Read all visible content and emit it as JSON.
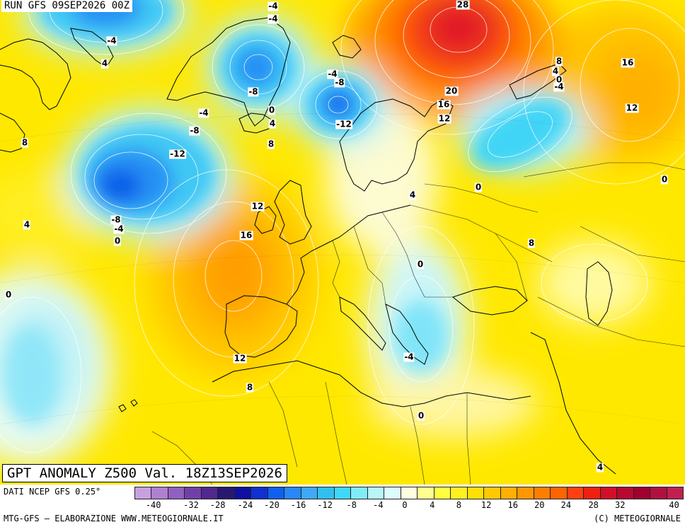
{
  "header": {
    "run": "RUN GFS 09SEP2026 00Z"
  },
  "title": "GPT ANOMALY Z500 Val. 18Z13SEP2026",
  "footer": {
    "data_source": "DATI NCEP GFS 0.25°",
    "credit": "MTG-GFS – ELABORAZIONE WWW.METEOGIORNALE.IT",
    "copyright": "(C) METEOGIORNALE"
  },
  "colorbar": {
    "colors": [
      "#c8a0e0",
      "#b080d0",
      "#9060c0",
      "#7040a8",
      "#502890",
      "#281870",
      "#1010a0",
      "#1030d0",
      "#1060f0",
      "#2888f8",
      "#40a8f8",
      "#30c0f0",
      "#40d8f8",
      "#80ecf8",
      "#b8f6fa",
      "#dcfbfc",
      "#ffffe0",
      "#ffff90",
      "#ffff40",
      "#fff020",
      "#ffe000",
      "#ffc800",
      "#ffb000",
      "#ff9800",
      "#ff7e00",
      "#ff6400",
      "#ff4010",
      "#f02010",
      "#d01028",
      "#b80830",
      "#a00030",
      "#b01040",
      "#c02050"
    ],
    "ticks": [
      "-40",
      "-32",
      "-28",
      "-24",
      "-20",
      "-16",
      "-12",
      "-8",
      "-4",
      "0",
      "4",
      "8",
      "12",
      "16",
      "20",
      "24",
      "28",
      "32",
      "40"
    ]
  },
  "contour_labels": [
    {
      "text": "-4"
    },
    {
      "text": "-4"
    },
    {
      "text": "28"
    },
    {
      "text": "-4"
    },
    {
      "text": "4"
    },
    {
      "text": "8"
    },
    {
      "text": "4"
    },
    {
      "text": "0"
    },
    {
      "text": "-4"
    },
    {
      "text": "16"
    },
    {
      "text": "-8"
    },
    {
      "text": "-4"
    },
    {
      "text": "-8"
    },
    {
      "text": "20"
    },
    {
      "text": "16"
    },
    {
      "text": "12"
    },
    {
      "text": "12"
    },
    {
      "text": "0"
    },
    {
      "text": "-4"
    },
    {
      "text": "-12"
    },
    {
      "text": "-8"
    },
    {
      "text": "4"
    },
    {
      "text": "8"
    },
    {
      "text": "8"
    },
    {
      "text": "-12"
    },
    {
      "text": "0"
    },
    {
      "text": "4"
    },
    {
      "text": "0"
    },
    {
      "text": "12"
    },
    {
      "text": "-8"
    },
    {
      "text": "-4"
    },
    {
      "text": "4"
    },
    {
      "text": "16"
    },
    {
      "text": "0"
    },
    {
      "text": "8"
    },
    {
      "text": "0"
    },
    {
      "text": "0"
    },
    {
      "text": "-4"
    },
    {
      "text": "12"
    },
    {
      "text": "8"
    },
    {
      "text": "0"
    },
    {
      "text": "4"
    }
  ]
}
